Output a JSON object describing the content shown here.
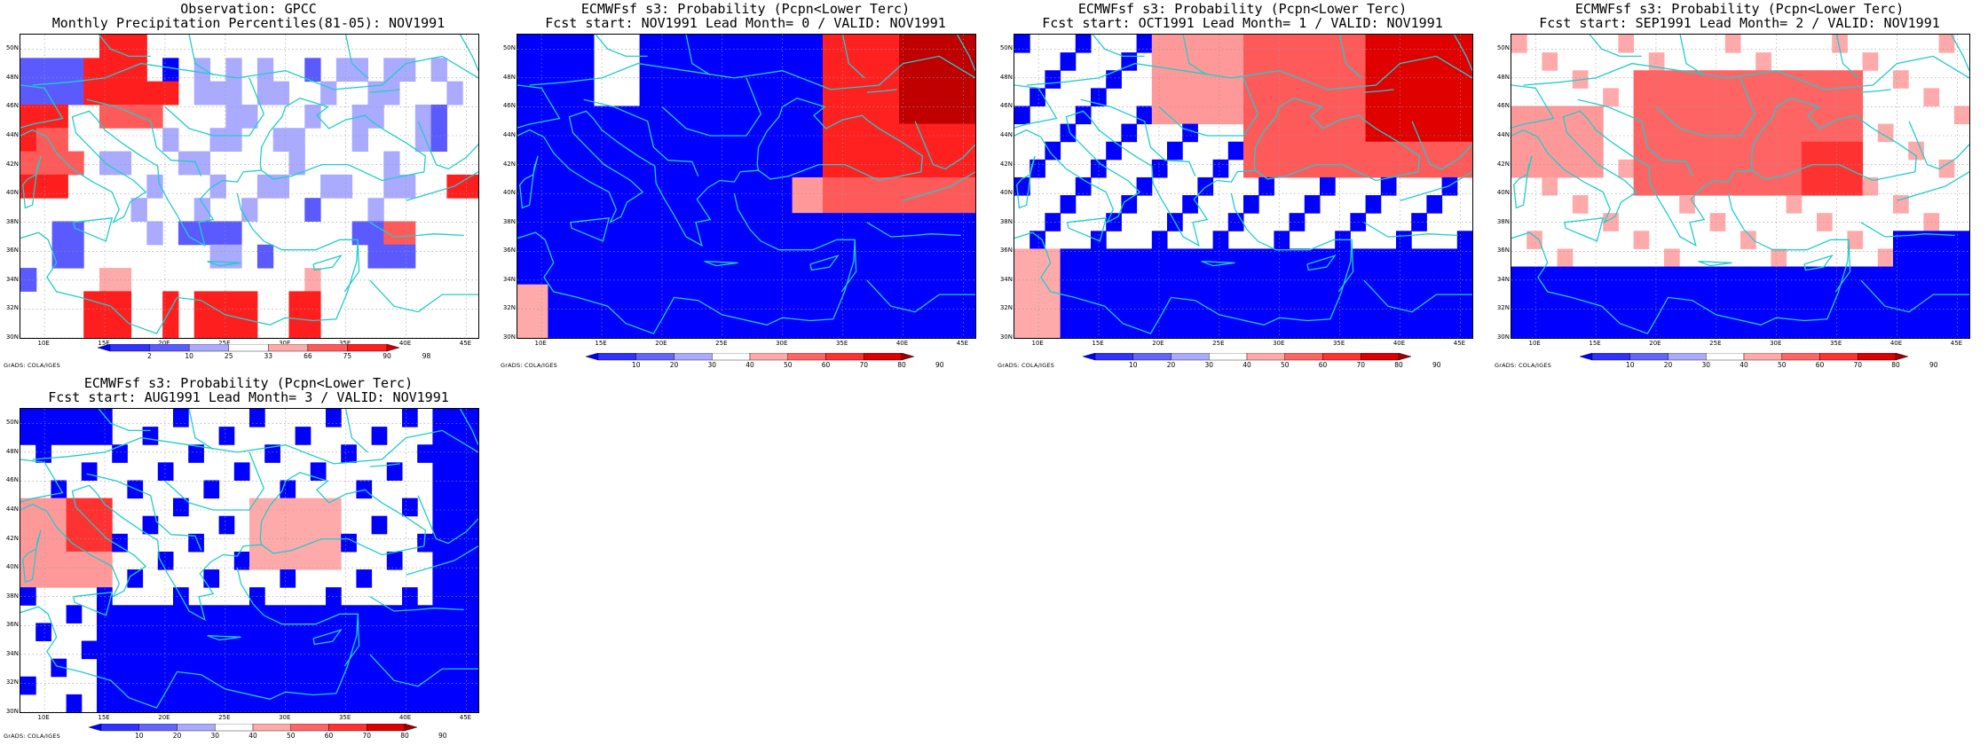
{
  "credit": "GrADS: COLA/IGES",
  "map": {
    "lat_labels": [
      "50N",
      "48N",
      "46N",
      "44N",
      "42N",
      "40N",
      "38N",
      "36N",
      "34N",
      "32N",
      "30N"
    ],
    "lon_labels": [
      "10E",
      "15E",
      "20E",
      "25E",
      "30E",
      "35E",
      "40E",
      "45E"
    ],
    "lon_range": [
      8,
      46
    ],
    "lat_range": [
      30,
      51
    ],
    "cell_deg": 2.5,
    "coast_color": "#22cccc",
    "grid_style": "dotted"
  },
  "colorbars": {
    "percentile": {
      "labels": [
        "2",
        "10",
        "25",
        "33",
        "66",
        "75",
        "90",
        "98"
      ],
      "colors": [
        "#0000ff",
        "#3232ff",
        "#5a5aff",
        "#aaaaff",
        "#ffffff",
        "#ffaaaa",
        "#ff5a5a",
        "#ff1e1e",
        "#c80000"
      ]
    },
    "probability": {
      "labels": [
        "10",
        "20",
        "30",
        "40",
        "50",
        "60",
        "70",
        "80",
        "90"
      ],
      "colors": [
        "#0000ff",
        "#3232ff",
        "#6464ff",
        "#aaaaff",
        "#ffffff",
        "#ffaaaa",
        "#ff6464",
        "#ff3232",
        "#dd0000",
        "#a00000"
      ]
    }
  },
  "panels": [
    {
      "title1": "Observation: GPCC",
      "title2": "Monthly Precipitation Percentiles(81-05): NOV1991",
      "cbar": "percentile",
      "grid": [
        ".....RRR.....................",
        "4444RRRR.2.a.a.a..4.aa.aa.a..",
        "4444RRRRRR.aaa.aa..a..aa...a.",
        "RRR..6666....aa...a..aa..a4..",
        "R66......a..aa..aa...a...a4..",
        "6666.aa...aa.....a.....a.....",
        "RRR.....a...a..aa..aa..aa..RR",
        ".......a...a..a...4...a......",
        "..44....a.4444.......4466....",
        "..44........aa.4......444....",
        "4....55...........5..........",
        "....RRR..R.RRRR..RR..........",
        "....RRR..R.RRRR..RR.........."
      ]
    },
    {
      "title1": "ECMWFsf s3: Probability (Pcpn<Lower Terc)",
      "title2": "Fcst start: NOV1991  Lead Month= 0 / VALID: NOV1991",
      "cbar": "probability"
    },
    {
      "title1": "ECMWFsf s3: Probability (Pcpn<Lower Terc)",
      "title2": "Fcst start: OCT1991  Lead Month= 1 / VALID: NOV1991",
      "cbar": "probability"
    },
    {
      "title1": "ECMWFsf s3: Probability (Pcpn<Lower Terc)",
      "title2": "Fcst start: SEP1991  Lead Month= 2 / VALID: NOV1991",
      "cbar": "probability"
    },
    {
      "title1": "ECMWFsf s3: Probability (Pcpn<Lower Terc)",
      "title2": "Fcst start: AUG1991  Lead Month= 3 / VALID: NOV1991",
      "cbar": "probability"
    }
  ]
}
